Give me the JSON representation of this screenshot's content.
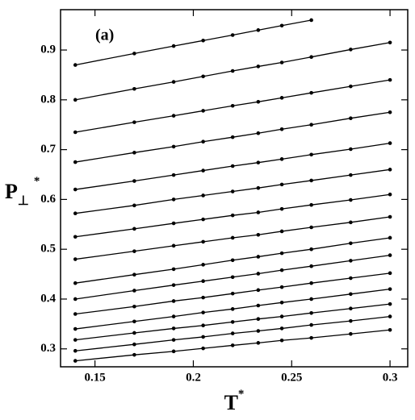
{
  "chart_data": {
    "type": "line",
    "annotation": "(a)",
    "xlabel": {
      "main": "T",
      "sup": "*"
    },
    "ylabel": {
      "main": "P",
      "sub": "⊥",
      "sup": "*"
    },
    "x": [
      0.14,
      0.17,
      0.19,
      0.205,
      0.22,
      0.233,
      0.245,
      0.26,
      0.28,
      0.3
    ],
    "xlim": [
      0.1325,
      0.309
    ],
    "xticks": [
      0.15,
      0.2,
      0.25,
      0.3
    ],
    "ylim": [
      0.264,
      0.981
    ],
    "yticks": [
      0.3,
      0.4,
      0.5,
      0.6,
      0.7,
      0.8,
      0.9
    ],
    "series": [
      {
        "color": "#000000",
        "values": [
          0.87,
          0.893,
          0.908,
          0.919,
          0.93,
          0.94,
          0.949,
          0.96,
          null,
          null
        ]
      },
      {
        "color": "#000000",
        "values": [
          0.8,
          0.822,
          0.836,
          0.847,
          0.858,
          0.867,
          0.875,
          0.886,
          0.901,
          0.915
        ]
      },
      {
        "color": "#000000",
        "values": [
          0.735,
          0.755,
          0.768,
          0.778,
          0.788,
          0.796,
          0.804,
          0.814,
          0.827,
          0.84
        ]
      },
      {
        "color": "#000000",
        "values": [
          0.675,
          0.694,
          0.706,
          0.716,
          0.725,
          0.733,
          0.741,
          0.75,
          0.763,
          0.775
        ]
      },
      {
        "color": "#000000",
        "values": [
          0.62,
          0.637,
          0.649,
          0.658,
          0.667,
          0.674,
          0.681,
          0.69,
          0.701,
          0.713
        ]
      },
      {
        "color": "#000000",
        "values": [
          0.572,
          0.588,
          0.6,
          0.608,
          0.616,
          0.623,
          0.63,
          0.638,
          0.649,
          0.66
        ]
      },
      {
        "color": "#000000",
        "values": [
          0.525,
          0.541,
          0.552,
          0.56,
          0.568,
          0.574,
          0.581,
          0.589,
          0.599,
          0.61
        ]
      },
      {
        "color": "#000000",
        "values": [
          0.48,
          0.496,
          0.507,
          0.515,
          0.523,
          0.529,
          0.536,
          0.544,
          0.554,
          0.565
        ]
      },
      {
        "color": "#000000",
        "values": [
          0.432,
          0.449,
          0.46,
          0.469,
          0.478,
          0.485,
          0.492,
          0.5,
          0.512,
          0.523
        ]
      },
      {
        "color": "#000000",
        "values": [
          0.4,
          0.417,
          0.428,
          0.436,
          0.444,
          0.451,
          0.458,
          0.466,
          0.477,
          0.488
        ]
      },
      {
        "color": "#000000",
        "values": [
          0.37,
          0.385,
          0.396,
          0.403,
          0.411,
          0.418,
          0.424,
          0.432,
          0.442,
          0.452
        ]
      },
      {
        "color": "#000000",
        "values": [
          0.34,
          0.355,
          0.365,
          0.373,
          0.38,
          0.387,
          0.393,
          0.4,
          0.41,
          0.42
        ]
      },
      {
        "color": "#000000",
        "values": [
          0.318,
          0.332,
          0.341,
          0.347,
          0.354,
          0.36,
          0.365,
          0.372,
          0.381,
          0.39
        ]
      },
      {
        "color": "#000000",
        "values": [
          0.296,
          0.309,
          0.318,
          0.324,
          0.331,
          0.336,
          0.341,
          0.348,
          0.356,
          0.365
        ]
      },
      {
        "color": "#000000",
        "values": [
          0.276,
          0.288,
          0.295,
          0.301,
          0.307,
          0.312,
          0.317,
          0.322,
          0.33,
          0.338
        ]
      }
    ]
  }
}
